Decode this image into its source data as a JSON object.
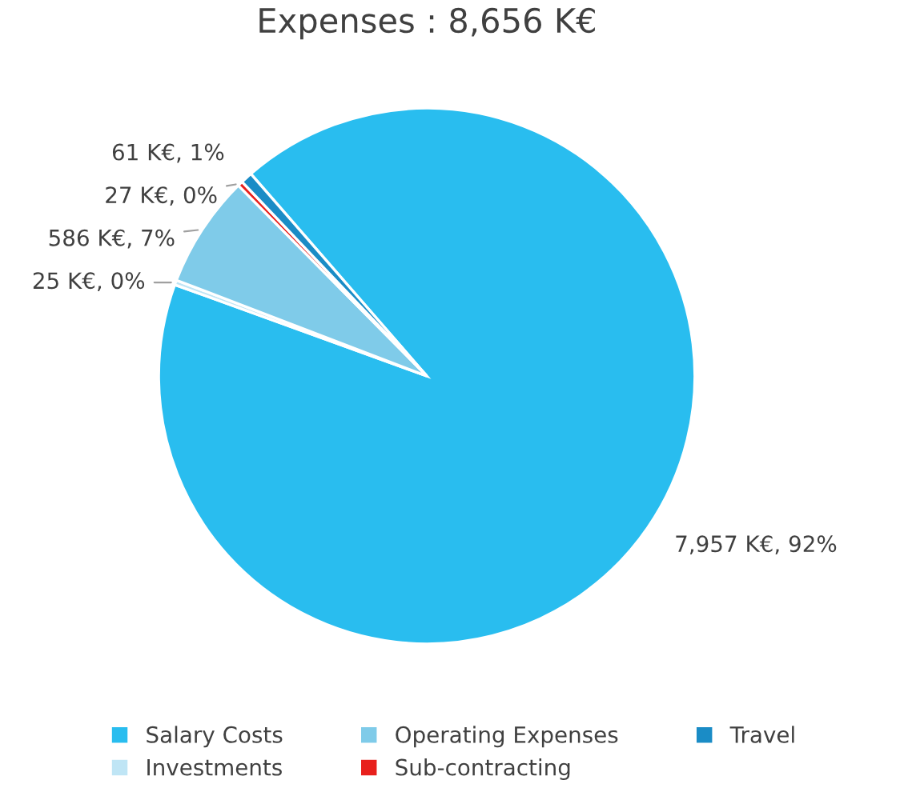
{
  "chart_data": {
    "type": "pie",
    "title": "Expenses : 8,656 K€",
    "categories": [
      "Salary Costs",
      "Investments",
      "Operating Expenses",
      "Sub-contracting",
      "Travel"
    ],
    "values": [
      7957,
      25,
      586,
      27,
      61
    ],
    "colors": [
      "#29bdef",
      "#bfe5f5",
      "#7fcbe9",
      "#e8201c",
      "#1a8cc6"
    ],
    "value_labels": [
      "7,957 K€, 92%",
      "25 K€, 0%",
      "586 K€, 7%",
      "27 K€, 0%",
      "61 K€, 1%"
    ],
    "legend": "bottom"
  }
}
